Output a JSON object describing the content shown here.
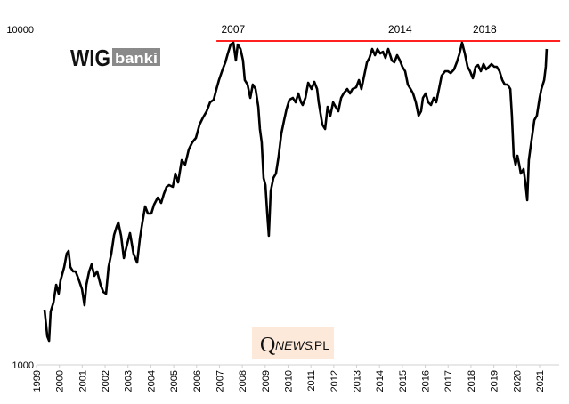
{
  "chart_data": {
    "type": "line",
    "title": "",
    "xlabel": "",
    "ylabel": "",
    "y_scale": "log",
    "ylim": [
      1000,
      10000
    ],
    "xlim": [
      1999,
      2021.9
    ],
    "grid": false,
    "y_ticks": [
      "1000",
      "10000"
    ],
    "x_ticks": [
      "1999",
      "2000",
      "2001",
      "2002",
      "2003",
      "2004",
      "2005",
      "2006",
      "2007",
      "2008",
      "2009",
      "2010",
      "2011",
      "2012",
      "2013",
      "2014",
      "2015",
      "2016",
      "2017",
      "2018",
      "2019",
      "2020",
      "2021"
    ],
    "series_color": "#000000",
    "reference_line": {
      "value": 9237,
      "x_start": 2006.87,
      "x_end": 2021.9,
      "color": "#ff0000"
    },
    "annotations": [
      {
        "text": "2007",
        "x": 2007.6
      },
      {
        "text": "2014",
        "x": 2014.9
      },
      {
        "text": "2018",
        "x": 2018.6
      }
    ],
    "x": [
      1999.35,
      1999.47,
      1999.55,
      1999.62,
      1999.74,
      1999.86,
      1999.97,
      2000.05,
      2000.21,
      2000.32,
      2000.4,
      2000.48,
      2000.6,
      2000.71,
      2000.83,
      2000.99,
      2001.1,
      2001.18,
      2001.3,
      2001.41,
      2001.53,
      2001.65,
      2001.8,
      2001.92,
      2002.04,
      2002.15,
      2002.27,
      2002.39,
      2002.5,
      2002.58,
      2002.7,
      2002.82,
      2002.93,
      2003.09,
      2003.24,
      2003.4,
      2003.52,
      2003.63,
      2003.75,
      2003.87,
      2004.02,
      2004.14,
      2004.3,
      2004.45,
      2004.57,
      2004.69,
      2004.8,
      2004.96,
      2005.07,
      2005.19,
      2005.35,
      2005.5,
      2005.66,
      2005.81,
      2005.97,
      2006.13,
      2006.28,
      2006.44,
      2006.59,
      2006.75,
      2006.87,
      2006.98,
      2007.14,
      2007.26,
      2007.37,
      2007.49,
      2007.61,
      2007.72,
      2007.8,
      2007.92,
      2008.03,
      2008.11,
      2008.23,
      2008.35,
      2008.46,
      2008.58,
      2008.7,
      2008.77,
      2008.85,
      2008.93,
      2009.01,
      2009.09,
      2009.16,
      2009.24,
      2009.36,
      2009.47,
      2009.59,
      2009.71,
      2009.83,
      2009.94,
      2010.06,
      2010.21,
      2010.33,
      2010.45,
      2010.57,
      2010.64,
      2010.76,
      2010.88,
      2011.03,
      2011.15,
      2011.27,
      2011.34,
      2011.5,
      2011.62,
      2011.73,
      2011.85,
      2011.97,
      2012.08,
      2012.2,
      2012.32,
      2012.43,
      2012.59,
      2012.71,
      2012.82,
      2012.98,
      2013.1,
      2013.21,
      2013.33,
      2013.45,
      2013.56,
      2013.68,
      2013.8,
      2013.91,
      2014.03,
      2014.15,
      2014.26,
      2014.38,
      2014.54,
      2014.65,
      2014.77,
      2014.89,
      2015.0,
      2015.12,
      2015.24,
      2015.36,
      2015.47,
      2015.59,
      2015.71,
      2015.82,
      2015.9,
      2016.02,
      2016.13,
      2016.25,
      2016.37,
      2016.48,
      2016.6,
      2016.72,
      2016.87,
      2016.99,
      2017.11,
      2017.26,
      2017.38,
      2017.5,
      2017.61,
      2017.73,
      2017.85,
      2017.96,
      2018.08,
      2018.2,
      2018.31,
      2018.43,
      2018.55,
      2018.67,
      2018.78,
      2018.9,
      2019.02,
      2019.13,
      2019.25,
      2019.37,
      2019.48,
      2019.6,
      2019.72,
      2019.79,
      2019.87,
      2019.95,
      2020.03,
      2020.11,
      2020.18,
      2020.3,
      2020.38,
      2020.46,
      2020.53,
      2020.61,
      2020.69,
      2020.77,
      2020.88,
      2021.0,
      2021.08,
      2021.2,
      2021.27,
      2021.31
    ],
    "values": [
      1460,
      1216,
      1179,
      1443,
      1533,
      1733,
      1630,
      1786,
      1958,
      2146,
      2185,
      1958,
      1899,
      1899,
      1808,
      1681,
      1505,
      1733,
      1899,
      1994,
      1842,
      1899,
      1733,
      1650,
      1630,
      1958,
      2146,
      2439,
      2577,
      2657,
      2424,
      2081,
      2240,
      2470,
      2146,
      2018,
      2380,
      2657,
      2965,
      2824,
      2824,
      3002,
      3150,
      3040,
      3230,
      3392,
      3435,
      3392,
      3718,
      3498,
      4074,
      3952,
      4384,
      4603,
      4746,
      5201,
      5460,
      5700,
      6059,
      6170,
      6641,
      7060,
      7597,
      7977,
      8479,
      9013,
      9124,
      8080,
      9013,
      8742,
      8080,
      7060,
      6847,
      6247,
      6847,
      6641,
      5877,
      5045,
      4603,
      3606,
      3435,
      2824,
      2424,
      3290,
      3606,
      3718,
      4200,
      4893,
      5362,
      5800,
      6170,
      6247,
      6059,
      6442,
      6059,
      5950,
      6247,
      6930,
      6641,
      6975,
      6641,
      6059,
      5201,
      5045,
      5877,
      5529,
      6059,
      5877,
      5700,
      6247,
      6442,
      6641,
      6442,
      6641,
      6720,
      7060,
      6641,
      7279,
      7977,
      8224,
      8742,
      8375,
      8742,
      8479,
      8580,
      8224,
      8742,
      8080,
      7977,
      8375,
      8080,
      7737,
      7504,
      6847,
      6641,
      6442,
      6059,
      5529,
      5700,
      6247,
      6442,
      6059,
      5950,
      6247,
      6059,
      6641,
      7279,
      7504,
      7504,
      7410,
      7597,
      7977,
      8479,
      9124,
      8479,
      7737,
      7504,
      7150,
      7737,
      7830,
      7504,
      7880,
      7597,
      7737,
      7880,
      7737,
      7737,
      7504,
      7060,
      6847,
      6847,
      6641,
      5529,
      4200,
      3952,
      4200,
      3952,
      3718,
      3833,
      3498,
      3095,
      4074,
      4465,
      4893,
      5362,
      5529,
      6247,
      6641,
      7060,
      7737,
      8742
    ]
  },
  "logo": {
    "text_main": "WIG",
    "text_sub": "banki"
  },
  "watermark": {
    "q": "Q",
    "text": "NEWS",
    "suffix": ".PL",
    "background": "#fde9d9"
  }
}
